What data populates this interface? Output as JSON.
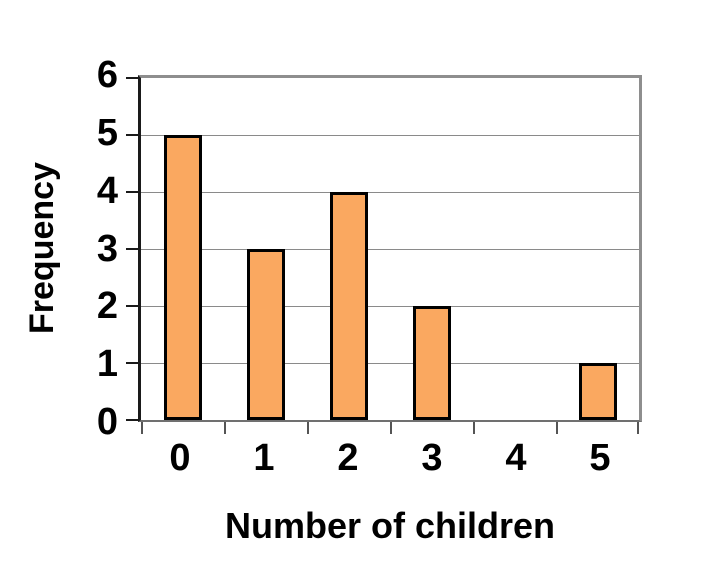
{
  "chart_data": {
    "type": "bar",
    "title": "",
    "categories": [
      "0",
      "1",
      "2",
      "3",
      "4",
      "5"
    ],
    "values": [
      5,
      3,
      4,
      2,
      0,
      1
    ],
    "xlabel": "Number of children",
    "ylabel": "Frequency",
    "ylim": [
      0,
      6
    ],
    "yticks": [
      0,
      1,
      2,
      3,
      4,
      5,
      6
    ],
    "grid": "horizontal",
    "legend": "none",
    "colors": {
      "bar_fill": "#FAA860",
      "bar_border": "#000000",
      "gridline": "#8a8a8a",
      "frame": "#8e8e8e",
      "axis": "#1a1a1a",
      "text": "#000000",
      "background": "#ffffff"
    }
  }
}
